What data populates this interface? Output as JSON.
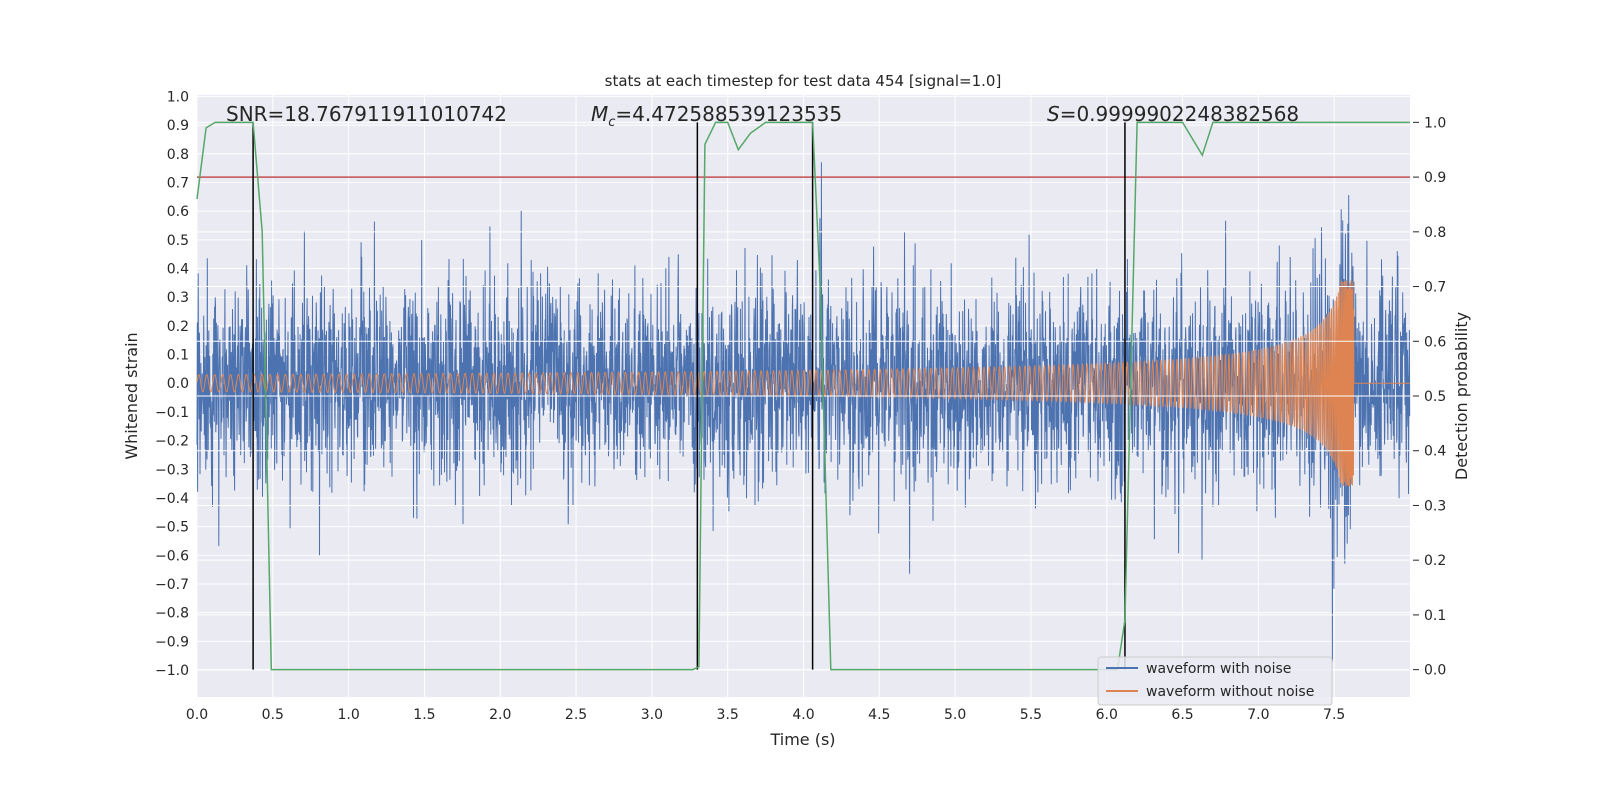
{
  "chart_data": {
    "type": "line",
    "title": "stats at each timestep for test data 454 [signal=1.0]",
    "xlabel": "Time (s)",
    "ylabel": "Whitened strain",
    "ylabel_right": "Detection probability",
    "xlim": [
      0,
      8
    ],
    "ylim": [
      -1.094,
      1.005
    ],
    "ylim_right": [
      -0.05,
      1.05
    ],
    "grid": true,
    "x_ticks": [
      "0.0",
      "0.5",
      "1.0",
      "1.5",
      "2.0",
      "2.5",
      "3.0",
      "3.5",
      "4.0",
      "4.5",
      "5.0",
      "5.5",
      "6.0",
      "6.5",
      "7.0",
      "7.5"
    ],
    "y_ticks": [
      "1.0",
      "0.9",
      "0.8",
      "0.7",
      "0.6",
      "0.5",
      "0.4",
      "0.3",
      "0.2",
      "0.1",
      "0.0",
      "−0.1",
      "−0.2",
      "−0.3",
      "−0.4",
      "−0.5",
      "−0.6",
      "−0.7",
      "−0.8",
      "−0.9",
      "−1.0"
    ],
    "y_ticks_right": [
      "0.0",
      "0.1",
      "0.2",
      "0.3",
      "0.4",
      "0.5",
      "0.6",
      "0.7",
      "0.8",
      "0.9",
      "1.0"
    ],
    "annotations": {
      "snr": "SNR=18.767911911010742",
      "mc_symbol": "M",
      "mc_sub": "c",
      "mc_value": "=4.472588539123535",
      "s_symbol": "S",
      "s_value": "=0.9999902248382568"
    },
    "legend": {
      "placement": "lower-right",
      "entries": [
        "waveform with noise",
        "waveform without noise"
      ]
    },
    "colors": {
      "background": "#EAEAF2",
      "noise": "#4C72B0",
      "signal": "#DD8452",
      "probability": "#55A868",
      "threshold": "#C44E52",
      "markers": "#000000"
    },
    "series": [
      {
        "name": "waveform with noise",
        "axis": "left",
        "model": "gaussian noise + chirp",
        "noise_std": 0.17,
        "peak_abs": 0.97
      },
      {
        "name": "waveform without noise",
        "axis": "left",
        "model": "chirp",
        "f0_hz": 19,
        "coalescence_time": 7.63,
        "amp_start": 0.03,
        "amp_peak": 0.36
      },
      {
        "name": "detection probability",
        "axis": "right",
        "x": [
          0.0,
          0.06,
          0.12,
          0.37,
          0.43,
          0.49,
          3.27,
          3.31,
          3.35,
          3.42,
          3.5,
          3.57,
          3.65,
          3.75,
          4.06,
          4.11,
          4.18,
          6.07,
          6.12,
          6.2,
          6.5,
          6.63,
          6.7,
          8.0
        ],
        "y": [
          0.86,
          0.99,
          1.0,
          1.0,
          0.8,
          0.0,
          0.0,
          0.005,
          0.96,
          1.0,
          1.0,
          0.95,
          0.98,
          1.0,
          1.0,
          0.7,
          0.0,
          0.0,
          0.09,
          1.0,
          1.0,
          0.94,
          1.0,
          1.0
        ]
      },
      {
        "name": "threshold",
        "axis": "right",
        "y": 0.9
      }
    ],
    "vertical_markers_s": [
      0.37,
      3.3,
      4.06,
      6.12
    ]
  }
}
